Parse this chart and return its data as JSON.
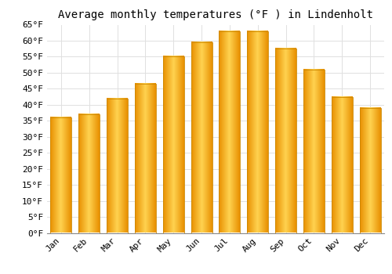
{
  "title": "Average monthly temperatures (°F ) in Lindenholt",
  "months": [
    "Jan",
    "Feb",
    "Mar",
    "Apr",
    "May",
    "Jun",
    "Jul",
    "Aug",
    "Sep",
    "Oct",
    "Nov",
    "Dec"
  ],
  "values": [
    36,
    37,
    42,
    46.5,
    55,
    59.5,
    63,
    63,
    57.5,
    51,
    42.5,
    39
  ],
  "bar_color_center": "#FFD060",
  "bar_color_edge": "#F0A000",
  "bar_color_gradient_left": "#E89000",
  "bar_color_gradient_right": "#F5A500",
  "ylim": [
    0,
    65
  ],
  "yticks": [
    0,
    5,
    10,
    15,
    20,
    25,
    30,
    35,
    40,
    45,
    50,
    55,
    60,
    65
  ],
  "background_color": "#FFFFFF",
  "grid_color": "#E0E0E0",
  "title_fontsize": 10,
  "tick_fontsize": 8,
  "font_family": "monospace",
  "bar_width": 0.75
}
